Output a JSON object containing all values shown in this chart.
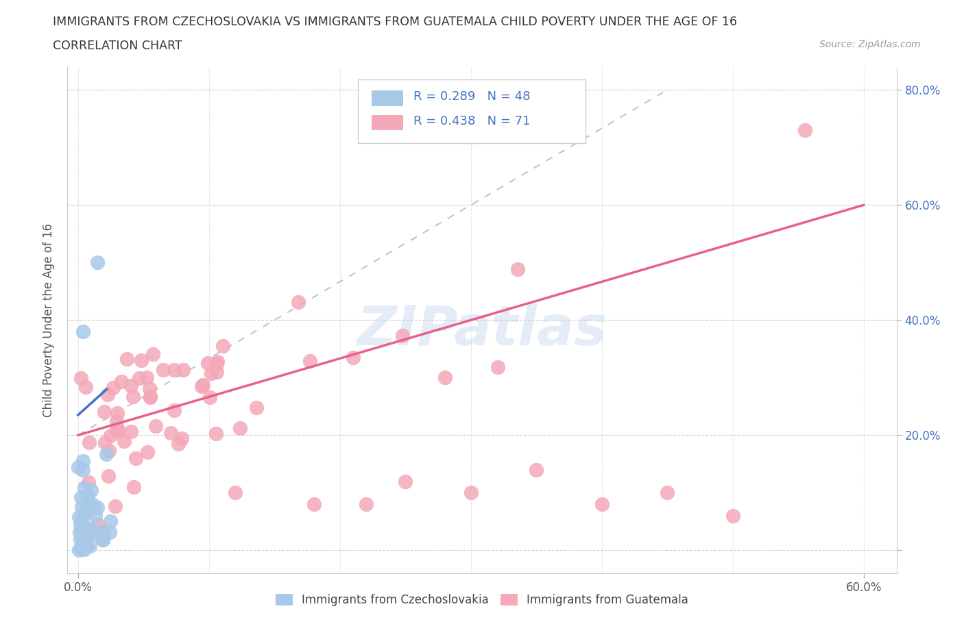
{
  "title": "IMMIGRANTS FROM CZECHOSLOVAKIA VS IMMIGRANTS FROM GUATEMALA CHILD POVERTY UNDER THE AGE OF 16",
  "subtitle": "CORRELATION CHART",
  "source": "Source: ZipAtlas.com",
  "ylabel": "Child Poverty Under the Age of 16",
  "legend_label_blue": "Immigrants from Czechoslovakia",
  "legend_label_pink": "Immigrants from Guatemala",
  "R_blue": 0.289,
  "N_blue": 48,
  "R_pink": 0.438,
  "N_pink": 71,
  "color_blue": "#a8c8e8",
  "color_pink": "#f4a8b8",
  "color_blue_line": "#4472c4",
  "color_pink_line": "#e8608a",
  "color_blue_text": "#4472c4",
  "color_gray_text": "#555555",
  "watermark_color": "#c8daf0",
  "background_color": "#ffffff"
}
